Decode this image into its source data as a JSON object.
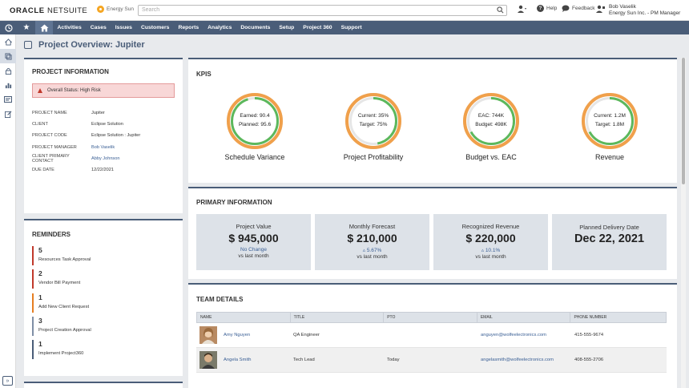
{
  "header": {
    "logo_oracle": "ORACLE",
    "logo_netsuite": "NETSUITE",
    "brand": "Energy Sun",
    "search_placeholder": "Search",
    "help_label": "Help",
    "feedback_label": "Feedback",
    "user_name": "Bob Vaselik",
    "user_role": "Energy Sun Inc. - PM Manager"
  },
  "nav": {
    "items": [
      "Activities",
      "Cases",
      "Issues",
      "Customers",
      "Reports",
      "Analytics",
      "Documents",
      "Setup",
      "Project 360",
      "Support"
    ]
  },
  "page": {
    "title": "Project Overview: Jupiter"
  },
  "project_info": {
    "heading": "Project Information",
    "alert": "Overall Status: High Risk",
    "fields": [
      {
        "label": "Project Name",
        "value": "Jupiter"
      },
      {
        "label": "Client",
        "value": "Eclipse Solution"
      },
      {
        "label": "Project Code",
        "value": "Eclipse Solution : Jupiter"
      },
      {
        "label": "Project Manager",
        "value": "Bob Vaselik"
      },
      {
        "label": "Client Primary Contact",
        "value": "Abby Johnson"
      },
      {
        "label": "Due Date",
        "value": "12/22/2021"
      }
    ]
  },
  "reminders": {
    "heading": "Reminders",
    "items": [
      {
        "count": "5",
        "label": "Resources Task Approval",
        "color": "#c0392b"
      },
      {
        "count": "2",
        "label": "Vendor Bill Payment",
        "color": "#c0392b"
      },
      {
        "count": "1",
        "label": "Add New Client Request",
        "color": "#e67e22"
      },
      {
        "count": "3",
        "label": "Project Creation Approval",
        "color": "#7f8fa6"
      },
      {
        "count": "1",
        "label": "Implement Project360",
        "color": "#4a5d78"
      }
    ]
  },
  "kpis": {
    "heading": "KPIs",
    "items": [
      {
        "name": "Schedule Variance",
        "line1": "Earned: 90.4",
        "line2": "Planned: 95.6",
        "green_fraction": 0.95
      },
      {
        "name": "Project Profitability",
        "line1": "Current: 35%",
        "line2": "Target: 75%",
        "green_fraction": 0.47
      },
      {
        "name": "Budget vs. EAC",
        "line1": "EAC: 744K",
        "line2": "Budget: 498K",
        "green_fraction": 0.67
      },
      {
        "name": "Revenue",
        "line1": "Current: 1.2M",
        "line2": "Target: 1.8M",
        "green_fraction": 0.67
      }
    ],
    "colors": {
      "green": "#5cb85c",
      "orange": "#f0a04b",
      "track": "#e6e6e6"
    }
  },
  "primary_info": {
    "heading": "Primary Information",
    "stats": [
      {
        "label": "Project Value",
        "value": "$ 945,000",
        "change": "No Change",
        "sub": "vs last month"
      },
      {
        "label": "Monthly Forecast",
        "value": "$ 210,000",
        "change": "▵ 5.67%",
        "sub": "vs last month"
      },
      {
        "label": "Recognized Revenue",
        "value": "$ 220,000",
        "change": "▵ 10.1%",
        "sub": "vs last month"
      },
      {
        "label": "Planned Delivery Date",
        "value": "Dec 22, 2021",
        "change": "",
        "sub": ""
      }
    ]
  },
  "team": {
    "heading": "Team Details",
    "columns": [
      "Name",
      "Title",
      "PTO",
      "Email",
      "Phone Number"
    ],
    "rows": [
      {
        "name": "Amy Nguyen",
        "title": "QA Engineer",
        "pto": "",
        "email": "anguyen@wolfeelectronics.com",
        "phone": "415-555-9674"
      },
      {
        "name": "Angela Smith",
        "title": "Tech Lead",
        "pto": "Today",
        "email": "angelasmith@wolfeelectronics.com",
        "phone": "408-555-2706"
      }
    ]
  }
}
